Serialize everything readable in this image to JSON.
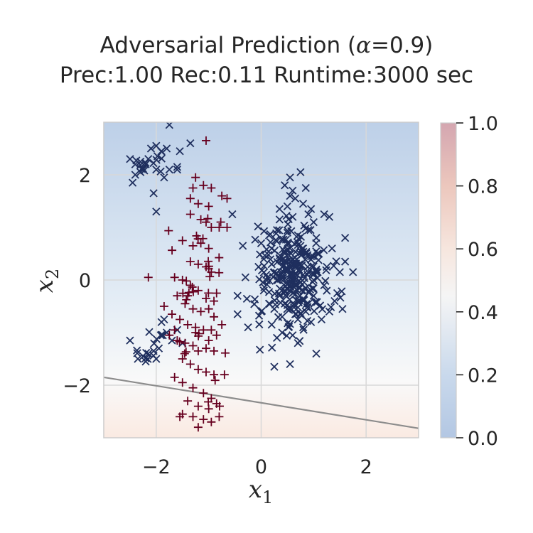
{
  "chart_data": {
    "type": "scatter",
    "title": "Adversarial Prediction (α=0.9)",
    "subtitle": "Prec:1.00  Rec:0.11  Runtime:3000 sec",
    "title_parts": {
      "prefix": "Adversarial Prediction (",
      "symbol": "α",
      "suffix": "=0.9)"
    },
    "xlabel": "x",
    "xlabel_sub": "1",
    "ylabel": "x",
    "ylabel_sub": "2",
    "xlim": [
      -3,
      3
    ],
    "ylim": [
      -3,
      3
    ],
    "x_ticks": [
      {
        "value": -2,
        "label": "−2"
      },
      {
        "value": 0,
        "label": "0"
      },
      {
        "value": 2,
        "label": "2"
      }
    ],
    "y_ticks": [
      {
        "value": -2,
        "label": "−2"
      },
      {
        "value": 0,
        "label": "0"
      },
      {
        "value": 2,
        "label": "2"
      }
    ],
    "grid": true,
    "decision_boundary": {
      "x": [
        -3,
        3
      ],
      "y": [
        -1.85,
        -2.82
      ]
    },
    "colorbar": {
      "range": [
        0,
        1
      ],
      "ticks": [
        "0.0",
        "0.2",
        "0.4",
        "0.6",
        "0.8",
        "1.0"
      ],
      "colors": [
        "#b3c7e3",
        "#f7f7f7",
        "#d4a6b0"
      ]
    },
    "series": [
      {
        "marker": "x",
        "color": "#1f2f5e",
        "cluster_centers": [
          [
            0.6,
            0.1
          ],
          [
            -2.3,
            2.2
          ],
          [
            -2.0,
            2.3
          ],
          [
            -2.2,
            -1.4
          ],
          [
            -1.9,
            -1.1
          ]
        ],
        "points": [
          [
            -2.5,
            2.3
          ],
          [
            -2.4,
            2.2
          ],
          [
            -2.3,
            2.25
          ],
          [
            -2.25,
            2.1
          ],
          [
            -2.2,
            2.2
          ],
          [
            -2.3,
            2.05
          ],
          [
            -2.15,
            2.3
          ],
          [
            -2.4,
            2.0
          ],
          [
            -2.45,
            1.85
          ],
          [
            -2.1,
            2.5
          ],
          [
            -2.0,
            2.55
          ],
          [
            -1.9,
            2.45
          ],
          [
            -1.8,
            2.5
          ],
          [
            -1.75,
            2.1
          ],
          [
            -2.0,
            2.1
          ],
          [
            -1.85,
            1.95
          ],
          [
            -1.6,
            2.15
          ],
          [
            -1.55,
            2.45
          ],
          [
            -1.35,
            2.6
          ],
          [
            -1.75,
            2.95
          ],
          [
            -2.05,
            1.65
          ],
          [
            -2.0,
            1.3
          ],
          [
            -1.6,
            2.1
          ],
          [
            -2.5,
            -1.15
          ],
          [
            -2.35,
            -1.5
          ],
          [
            -2.25,
            -1.45
          ],
          [
            -2.15,
            -1.4
          ],
          [
            -2.05,
            -1.35
          ],
          [
            -2.0,
            -1.5
          ],
          [
            -1.95,
            -1.3
          ],
          [
            -2.2,
            -1.55
          ],
          [
            -1.9,
            -0.8
          ],
          [
            -1.8,
            -1.0
          ],
          [
            -1.7,
            -1.15
          ],
          [
            -1.6,
            -0.95
          ],
          [
            -1.5,
            -1.2
          ],
          [
            -1.85,
            -0.75
          ],
          [
            -0.45,
            -0.65
          ],
          [
            -0.3,
            0.05
          ],
          [
            -0.45,
            -0.3
          ],
          [
            -0.55,
            1.25
          ],
          [
            -0.35,
            0.65
          ],
          [
            0.05,
            0.4
          ],
          [
            0.1,
            0.1
          ],
          [
            0.2,
            0.6
          ],
          [
            0.3,
            0.0
          ],
          [
            0.35,
            -0.3
          ],
          [
            0.45,
            0.5
          ],
          [
            0.5,
            0.2
          ],
          [
            0.55,
            -0.1
          ],
          [
            0.6,
            0.4
          ],
          [
            0.65,
            0.0
          ],
          [
            0.7,
            -0.4
          ],
          [
            0.75,
            0.3
          ],
          [
            0.8,
            0.6
          ],
          [
            0.85,
            -0.15
          ],
          [
            0.9,
            0.15
          ],
          [
            0.95,
            0.45
          ],
          [
            1.0,
            -0.3
          ],
          [
            1.05,
            0.2
          ],
          [
            1.1,
            0.5
          ],
          [
            0.25,
            -0.55
          ],
          [
            0.4,
            -0.7
          ],
          [
            0.55,
            -0.55
          ],
          [
            0.7,
            -0.75
          ],
          [
            0.85,
            -0.6
          ],
          [
            0.95,
            -0.8
          ],
          [
            0.15,
            0.85
          ],
          [
            0.3,
            0.95
          ],
          [
            0.5,
            0.9
          ],
          [
            0.7,
            0.85
          ],
          [
            0.9,
            0.95
          ],
          [
            1.05,
            0.8
          ],
          [
            0.35,
            1.15
          ],
          [
            0.6,
            1.2
          ],
          [
            0.05,
            -0.2
          ],
          [
            0.15,
            -0.45
          ],
          [
            0.2,
            0.3
          ],
          [
            0.4,
            0.25
          ],
          [
            0.45,
            -0.2
          ],
          [
            0.6,
            -0.25
          ],
          [
            0.75,
            -0.05
          ],
          [
            0.8,
            0.1
          ],
          [
            1.2,
            -0.1
          ],
          [
            1.25,
            0.25
          ],
          [
            1.35,
            0.6
          ],
          [
            1.4,
            -0.4
          ],
          [
            1.3,
            -0.6
          ],
          [
            1.15,
            -0.75
          ],
          [
            0.2,
            -0.85
          ],
          [
            0.4,
            -1.0
          ],
          [
            0.6,
            -1.05
          ],
          [
            0.8,
            -0.9
          ],
          [
            0.0,
            -0.6
          ],
          [
            -0.05,
            0.25
          ],
          [
            0.0,
            0.7
          ],
          [
            1.5,
            0.15
          ],
          [
            1.6,
            0.35
          ],
          [
            1.75,
            0.15
          ],
          [
            1.45,
            -0.25
          ],
          [
            1.55,
            -0.55
          ],
          [
            0.5,
            1.4
          ],
          [
            0.65,
            1.55
          ],
          [
            0.8,
            1.45
          ],
          [
            0.55,
            1.6
          ],
          [
            0.35,
            1.35
          ],
          [
            0.9,
            1.25
          ],
          [
            0.45,
            1.8
          ],
          [
            0.55,
            1.95
          ],
          [
            0.75,
            2.05
          ],
          [
            0.85,
            1.75
          ],
          [
            0.6,
            1.7
          ],
          [
            0.95,
            1.35
          ],
          [
            1.2,
            1.25
          ],
          [
            1.3,
            1.2
          ],
          [
            1.0,
            1.1
          ],
          [
            1.6,
            0.8
          ],
          [
            -0.25,
            -0.9
          ],
          [
            0.3,
            -1.1
          ],
          [
            0.55,
            -1.6
          ],
          [
            0.7,
            -1.2
          ],
          [
            1.05,
            -1.4
          ],
          [
            0.25,
            -1.65
          ],
          [
            0.9,
            -0.45
          ],
          [
            0.35,
            0.4
          ],
          [
            0.55,
            0.6
          ],
          [
            0.75,
            0.65
          ],
          [
            0.25,
            0.15
          ],
          [
            0.65,
            -0.65
          ],
          [
            0.45,
            -0.45
          ],
          [
            1.0,
            0.0
          ]
        ]
      },
      {
        "marker": "+",
        "color": "#67001f",
        "cluster_centers": [
          [
            -1.2,
            -0.3
          ]
        ],
        "points": [
          [
            -1.05,
            2.65
          ],
          [
            -1.25,
            1.95
          ],
          [
            -1.3,
            1.75
          ],
          [
            -1.1,
            1.8
          ],
          [
            -0.95,
            1.75
          ],
          [
            -1.35,
            1.55
          ],
          [
            -1.2,
            1.45
          ],
          [
            -1.0,
            1.4
          ],
          [
            -0.75,
            1.6
          ],
          [
            -0.65,
            1.55
          ],
          [
            -1.35,
            1.25
          ],
          [
            -1.15,
            1.15
          ],
          [
            -1.05,
            1.1
          ],
          [
            -0.95,
            1.0
          ],
          [
            -0.8,
            1.0
          ],
          [
            -0.65,
            1.0
          ],
          [
            -1.5,
            0.75
          ],
          [
            -1.3,
            0.65
          ],
          [
            -1.15,
            0.7
          ],
          [
            -1.0,
            0.6
          ],
          [
            -1.35,
            0.35
          ],
          [
            -1.2,
            0.3
          ],
          [
            -1.05,
            0.25
          ],
          [
            -0.95,
            0.15
          ],
          [
            -2.15,
            0.05
          ],
          [
            -1.65,
            0.05
          ],
          [
            -1.5,
            0.0
          ],
          [
            -1.35,
            -0.1
          ],
          [
            -1.2,
            -0.2
          ],
          [
            -1.05,
            -0.35
          ],
          [
            -0.85,
            -0.25
          ],
          [
            -1.6,
            -0.3
          ],
          [
            -1.45,
            -0.45
          ],
          [
            -1.3,
            -0.55
          ],
          [
            -1.15,
            -0.6
          ],
          [
            -1.0,
            -0.55
          ],
          [
            -0.9,
            -0.7
          ],
          [
            -1.85,
            -0.5
          ],
          [
            -1.7,
            -0.65
          ],
          [
            -1.55,
            -0.75
          ],
          [
            -1.4,
            -0.85
          ],
          [
            -1.25,
            -0.9
          ],
          [
            -1.1,
            -0.95
          ],
          [
            -0.95,
            -0.95
          ],
          [
            -0.85,
            -1.05
          ],
          [
            -1.75,
            -1.05
          ],
          [
            -1.6,
            -1.15
          ],
          [
            -1.45,
            -1.2
          ],
          [
            -1.3,
            -1.25
          ],
          [
            -1.2,
            -1.35
          ],
          [
            -1.05,
            -1.3
          ],
          [
            -0.9,
            -1.35
          ],
          [
            -1.5,
            -1.5
          ],
          [
            -1.35,
            -1.6
          ],
          [
            -1.2,
            -1.7
          ],
          [
            -1.05,
            -1.75
          ],
          [
            -0.9,
            -1.8
          ],
          [
            -0.7,
            -1.8
          ],
          [
            -1.65,
            -1.85
          ],
          [
            -1.5,
            -1.95
          ],
          [
            -1.3,
            -2.05
          ],
          [
            -1.1,
            -2.15
          ],
          [
            -0.95,
            -2.25
          ],
          [
            -1.4,
            -2.3
          ],
          [
            -1.2,
            -2.4
          ],
          [
            -1.0,
            -2.45
          ],
          [
            -0.85,
            -2.35
          ],
          [
            -1.5,
            -2.55
          ],
          [
            -1.3,
            -2.6
          ],
          [
            -1.1,
            -2.65
          ],
          [
            -0.95,
            -2.7
          ],
          [
            -1.2,
            -2.8
          ],
          [
            -1.55,
            -2.6
          ],
          [
            -0.8,
            -2.6
          ],
          [
            -1.25,
            -1.0
          ],
          [
            -1.0,
            -1.15
          ],
          [
            -1.4,
            -0.3
          ],
          [
            -0.9,
            -0.4
          ],
          [
            -0.75,
            -0.85
          ],
          [
            -1.65,
            -0.95
          ]
        ]
      }
    ]
  }
}
